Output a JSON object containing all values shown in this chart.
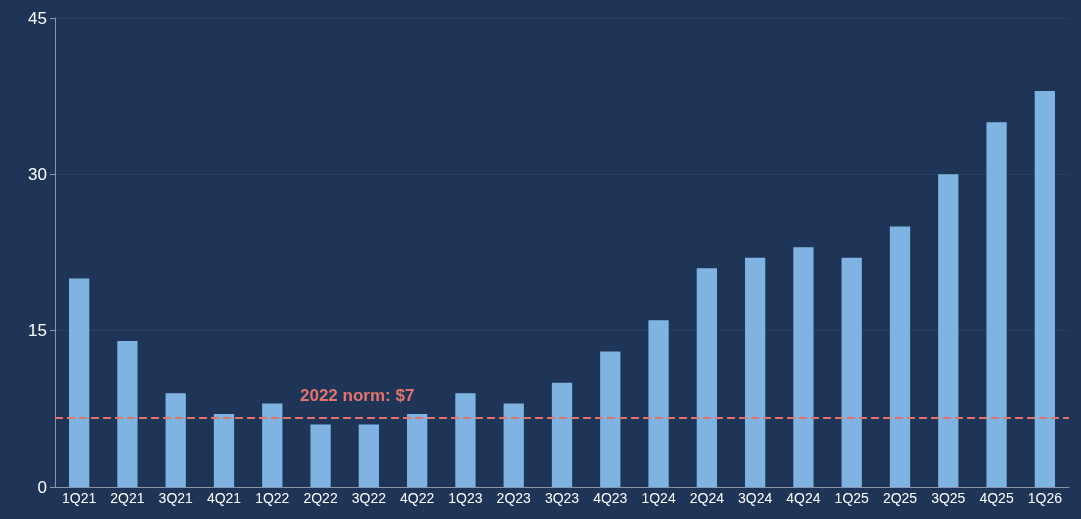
{
  "chart_data": {
    "type": "bar",
    "categories": [
      "1Q21",
      "2Q21",
      "3Q21",
      "4Q21",
      "1Q22",
      "2Q22",
      "3Q22",
      "4Q22",
      "1Q23",
      "2Q23",
      "3Q23",
      "4Q23",
      "1Q24",
      "2Q24",
      "3Q24",
      "4Q24",
      "1Q25",
      "2Q25",
      "3Q25",
      "4Q25",
      "1Q26"
    ],
    "values": [
      20,
      14,
      9,
      7,
      8,
      6,
      6,
      7,
      9,
      8,
      10,
      13,
      16,
      21,
      22,
      23,
      22,
      25,
      30,
      35,
      38
    ],
    "color": "#7fb4e2",
    "ylim": [
      0,
      45
    ],
    "yticks": [
      0,
      15,
      30,
      45
    ],
    "grid": "y",
    "ref_lines": [
      {
        "axis": "y",
        "value": 6.6,
        "label": "2022 norm: $7",
        "color": "#e5736b",
        "line_style": "dashed"
      }
    ]
  }
}
